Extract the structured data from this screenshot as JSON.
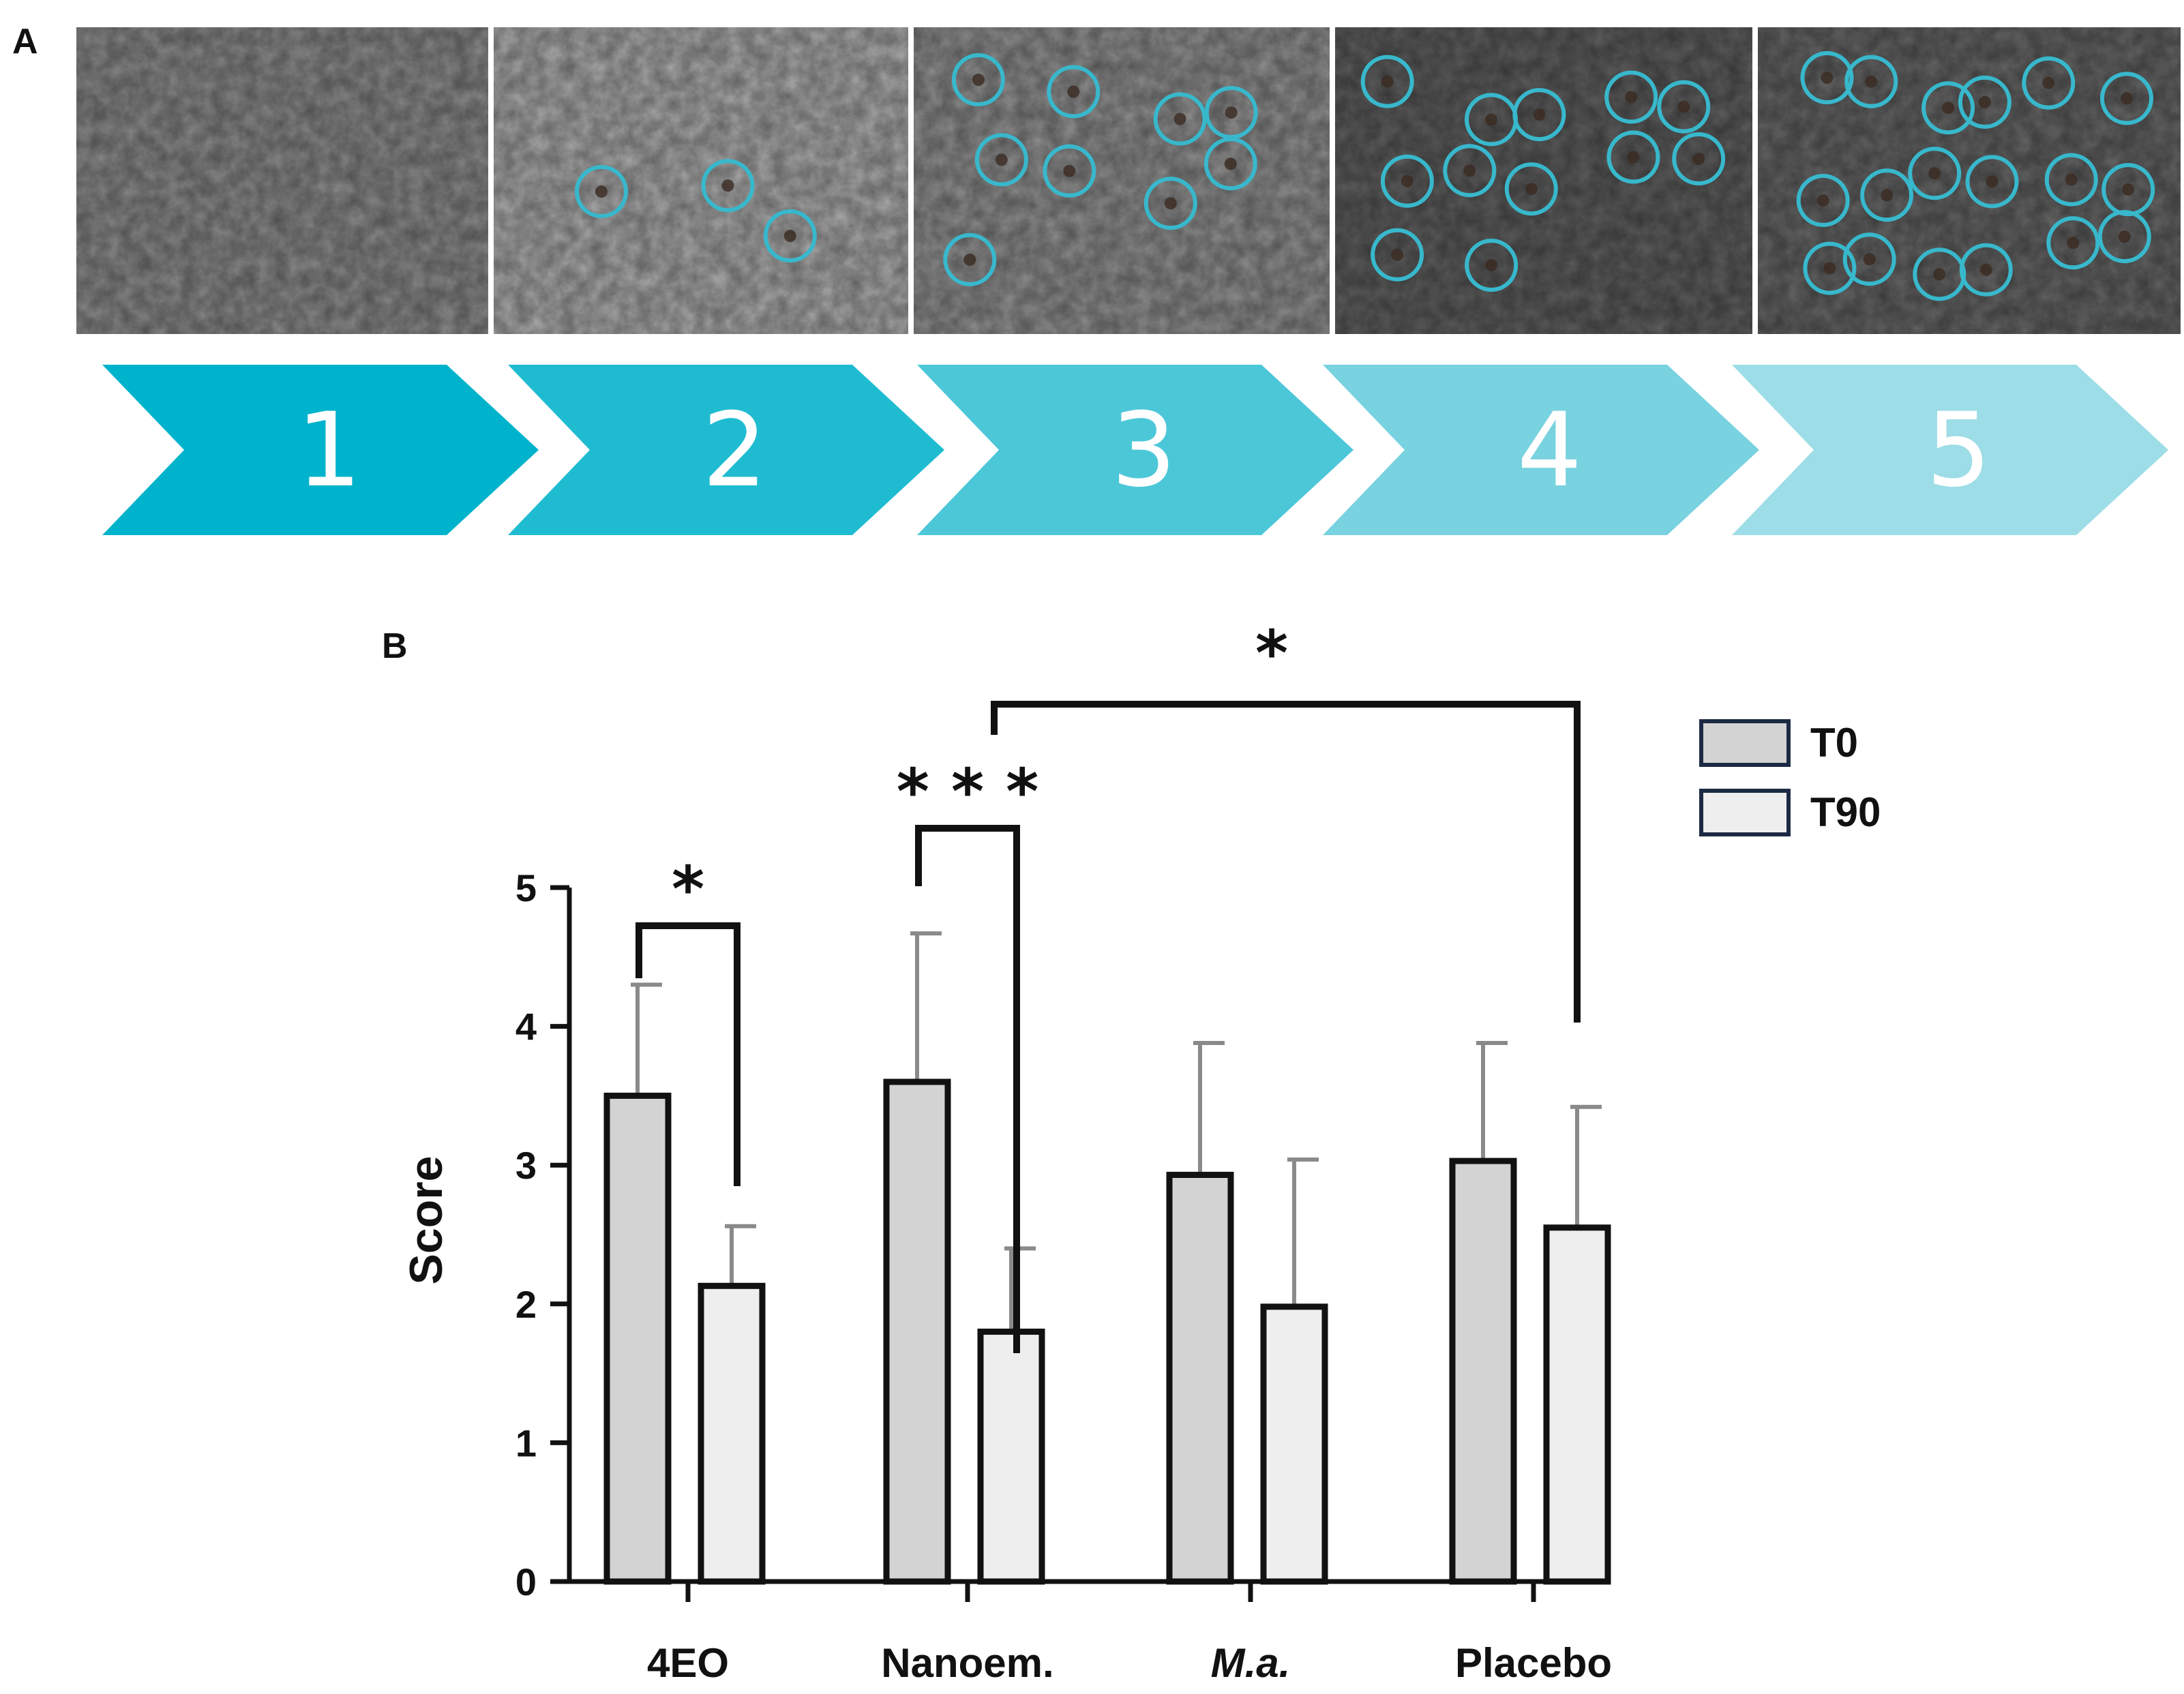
{
  "panel_a": {
    "label": "A",
    "steps": [
      {
        "number": "1",
        "spots": 0,
        "color": "#00b3cc",
        "tone": "#8a8a8a"
      },
      {
        "number": "2",
        "spots": 3,
        "color": "#1fbcd1",
        "tone": "#a9a9a9"
      },
      {
        "number": "3",
        "spots": 9,
        "color": "#4cc7d8",
        "tone": "#8f8f8f"
      },
      {
        "number": "4",
        "spots": 12,
        "color": "#78d2df",
        "tone": "#5e5e5e"
      },
      {
        "number": "5",
        "spots": 18,
        "color": "#9ddde7",
        "tone": "#656565"
      }
    ],
    "circle_color": "#38b8cc"
  },
  "panel_b": {
    "label": "B"
  },
  "chart_data": {
    "type": "bar",
    "categories": [
      "4EO",
      "Nanoem.",
      "M.a.",
      "Placebo"
    ],
    "category_italic": [
      false,
      false,
      true,
      false
    ],
    "series": [
      {
        "name": "T0",
        "values": [
          3.5,
          3.6,
          2.93,
          3.03
        ],
        "errors": [
          0.8,
          1.07,
          0.95,
          0.85
        ],
        "color": "#d3d3d3"
      },
      {
        "name": "T90",
        "values": [
          2.13,
          1.8,
          1.98,
          2.55
        ],
        "errors": [
          0.43,
          0.6,
          1.06,
          0.87
        ],
        "color": "#eeeeee"
      }
    ],
    "ylabel": "Score",
    "xlabel": "",
    "ylim": [
      0,
      5
    ],
    "yticks": [
      "0",
      "1",
      "2",
      "3",
      "4",
      "5"
    ],
    "legend_position": "top-right",
    "significance": [
      {
        "label": "*",
        "from": "4EO T0",
        "to": "4EO T90"
      },
      {
        "label": "* * *",
        "from": "Nanoem. T0",
        "to": "Nanoem. T90"
      },
      {
        "label": "*",
        "from": "Nanoem. T90",
        "to": "Placebo T90"
      }
    ]
  }
}
